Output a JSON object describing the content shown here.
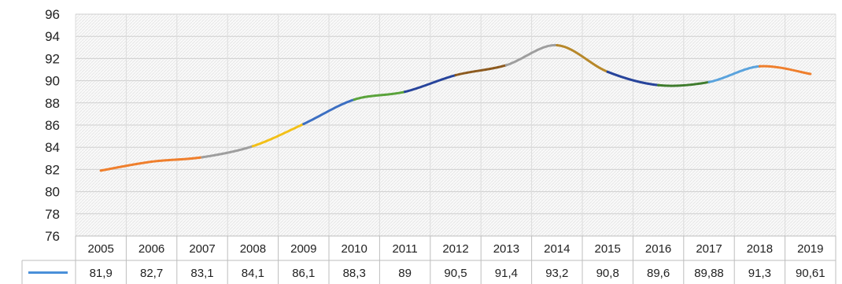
{
  "chart_data": {
    "type": "line",
    "categories": [
      "2005",
      "2006",
      "2007",
      "2008",
      "2009",
      "2010",
      "2011",
      "2012",
      "2013",
      "2014",
      "2015",
      "2016",
      "2017",
      "2018",
      "2019"
    ],
    "series": [
      {
        "values": [
          81.9,
          82.7,
          83.1,
          84.1,
          86.1,
          88.3,
          89,
          90.5,
          91.4,
          93.2,
          90.8,
          89.6,
          89.88,
          91.3,
          90.61
        ]
      }
    ],
    "value_labels": [
      "81,9",
      "82,7",
      "83,1",
      "84,1",
      "86,1",
      "88,3",
      "89",
      "90,5",
      "91,4",
      "93,2",
      "90,8",
      "89,6",
      "89,88",
      "91,3",
      "90,61"
    ],
    "y_ticks": [
      "76",
      "78",
      "80",
      "82",
      "84",
      "86",
      "88",
      "90",
      "92",
      "94",
      "96"
    ],
    "ylim": [
      76,
      96
    ],
    "grid": true,
    "legend": "data-table-left",
    "legend_color": "#4a90d9",
    "segment_colors": [
      "#ef7f2d",
      "#ef7f2d",
      "#9e9e9e",
      "#f2c018",
      "#3c6fc2",
      "#5aa33b",
      "#27449b",
      "#8c5a1f",
      "#9e9e9e",
      "#b7882a",
      "#27449b",
      "#3f7c2d",
      "#5aa3dd",
      "#ef7f2d",
      "#9e9e9e"
    ]
  }
}
